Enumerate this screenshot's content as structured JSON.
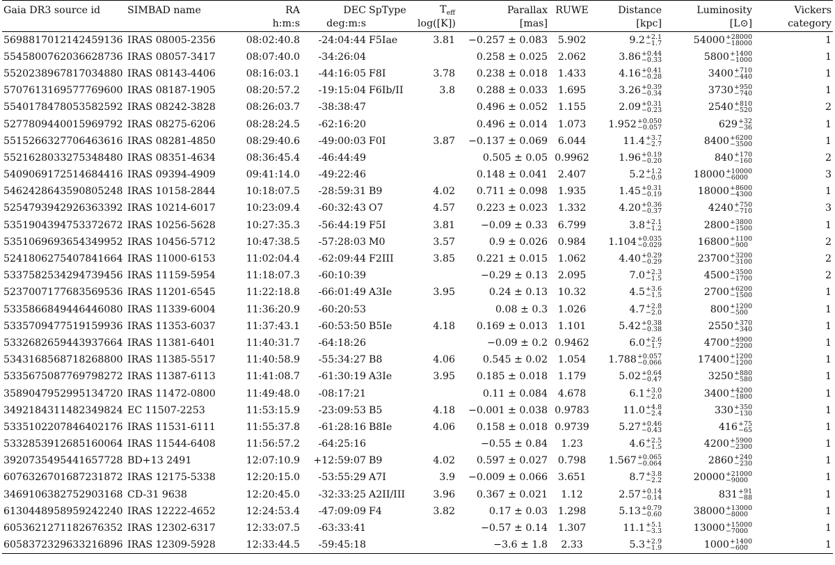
{
  "headers": {
    "gaia": "Gaia DR3 source id",
    "simbad": "SIMBAD name",
    "ra": "RA",
    "ra_unit": "h:m:s",
    "dec": "DEC",
    "dec_unit": "deg:m:s",
    "sptype": "SpType",
    "teff_main": "T",
    "teff_sub": "eff",
    "teff_unit": "log([K])",
    "parallax": "Parallax",
    "parallax_unit": "[mas]",
    "ruwe": "RUWE",
    "distance": "Distance",
    "distance_unit": "[kpc]",
    "luminosity": "Luminosity",
    "luminosity_unit": "[L⊙]",
    "vickers": "Vickers",
    "vickers_unit": "category"
  },
  "rows": [
    {
      "gaia": "5698817012142459136",
      "simbad": "IRAS 08005-2356",
      "ra": "08:02:40.8",
      "dec": "-24:04:44",
      "sp": "F5Iae",
      "teff": "3.81",
      "plx": "−0.257 ± 0.083",
      "ruwe": "5.902",
      "dist": "9.2",
      "dist_up": "+2.1",
      "dist_lo": "−1.7",
      "lum": "54000",
      "lum_up": "+28000",
      "lum_lo": "−18000",
      "vick": "1"
    },
    {
      "gaia": "5545800762036628736",
      "simbad": "IRAS 08057-3417",
      "ra": "08:07:40.0",
      "dec": "-34:26:04",
      "sp": "",
      "teff": "",
      "plx": "0.258 ± 0.025",
      "ruwe": "2.062",
      "dist": "3.86",
      "dist_up": "+0.44",
      "dist_lo": "−0.33",
      "lum": "5800",
      "lum_up": "+1400",
      "lum_lo": "−1000",
      "vick": "1"
    },
    {
      "gaia": "5520238967817034880",
      "simbad": "IRAS 08143-4406",
      "ra": "08:16:03.1",
      "dec": "-44:16:05",
      "sp": "F8I",
      "teff": "3.78",
      "plx": "0.238 ± 0.018",
      "ruwe": "1.433",
      "dist": "4.16",
      "dist_up": "+0.41",
      "dist_lo": "−0.28",
      "lum": "3400",
      "lum_up": "+710",
      "lum_lo": "−440",
      "vick": "1"
    },
    {
      "gaia": "5707613169577769600",
      "simbad": "IRAS 08187-1905",
      "ra": "08:20:57.2",
      "dec": "-19:15:04",
      "sp": "F6Ib/II",
      "teff": "3.8",
      "plx": "0.288 ± 0.033",
      "ruwe": "1.695",
      "dist": "3.26",
      "dist_up": "+0.39",
      "dist_lo": "−0.34",
      "lum": "3730",
      "lum_up": "+950",
      "lum_lo": "−740",
      "vick": "1"
    },
    {
      "gaia": "5540178478053582592",
      "simbad": "IRAS 08242-3828",
      "ra": "08:26:03.7",
      "dec": "-38:38:47",
      "sp": "",
      "teff": "",
      "plx": "0.496 ± 0.052",
      "ruwe": "1.155",
      "dist": "2.09",
      "dist_up": "+0.31",
      "dist_lo": "−0.23",
      "lum": "2540",
      "lum_up": "+810",
      "lum_lo": "−520",
      "vick": "2"
    },
    {
      "gaia": "5277809440015969792",
      "simbad": "IRAS 08275-6206",
      "ra": "08:28:24.5",
      "dec": "-62:16:20",
      "sp": "",
      "teff": "",
      "plx": "0.496 ± 0.014",
      "ruwe": "1.073",
      "dist": "1.952",
      "dist_up": "+0.050",
      "dist_lo": "−0.057",
      "lum": "629",
      "lum_up": "+32",
      "lum_lo": "−36",
      "vick": "1"
    },
    {
      "gaia": "5515266327706463616",
      "simbad": "IRAS 08281-4850",
      "ra": "08:29:40.6",
      "dec": "-49:00:03",
      "sp": "F0I",
      "teff": "3.87",
      "plx": "−0.137 ± 0.069",
      "ruwe": "6.044",
      "dist": "11.4",
      "dist_up": "+3.7",
      "dist_lo": "−2.7",
      "lum": "8400",
      "lum_up": "+6200",
      "lum_lo": "−3500",
      "vick": "1"
    },
    {
      "gaia": "5521628033275348480",
      "simbad": "IRAS 08351-4634",
      "ra": "08:36:45.4",
      "dec": "-46:44:49",
      "sp": "",
      "teff": "",
      "plx": "0.505 ± 0.05",
      "ruwe": "0.9962",
      "dist": "1.96",
      "dist_up": "+0.19",
      "dist_lo": "−0.20",
      "lum": "840",
      "lum_up": "+170",
      "lum_lo": "−160",
      "vick": "2"
    },
    {
      "gaia": "5409069172514684416",
      "simbad": "IRAS 09394-4909",
      "ra": "09:41:14.0",
      "dec": "-49:22:46",
      "sp": "",
      "teff": "",
      "plx": "0.148 ± 0.041",
      "ruwe": "2.407",
      "dist": "5.2",
      "dist_up": "+1.2",
      "dist_lo": "−0.9",
      "lum": "18000",
      "lum_up": "+10000",
      "lum_lo": "−6000",
      "vick": "3"
    },
    {
      "gaia": "5462428643590805248",
      "simbad": "IRAS 10158-2844",
      "ra": "10:18:07.5",
      "dec": "-28:59:31",
      "sp": "B9",
      "teff": "4.02",
      "plx": "0.711 ± 0.098",
      "ruwe": "1.935",
      "dist": "1.45",
      "dist_up": "+0.31",
      "dist_lo": "−0.19",
      "lum": "18000",
      "lum_up": "+8600",
      "lum_lo": "−4300",
      "vick": "1"
    },
    {
      "gaia": "5254793942926363392",
      "simbad": "IRAS 10214-6017",
      "ra": "10:23:09.4",
      "dec": "-60:32:43",
      "sp": "O7",
      "teff": "4.57",
      "plx": "0.223 ± 0.023",
      "ruwe": "1.332",
      "dist": "4.20",
      "dist_up": "+0.36",
      "dist_lo": "−0.37",
      "lum": "4240",
      "lum_up": "+750",
      "lum_lo": "−710",
      "vick": "3"
    },
    {
      "gaia": "5351904394753372672",
      "simbad": "IRAS 10256-5628",
      "ra": "10:27:35.3",
      "dec": "-56:44:19",
      "sp": "F5I",
      "teff": "3.81",
      "plx": "−0.09 ± 0.33",
      "ruwe": "6.799",
      "dist": "3.8",
      "dist_up": "+2.1",
      "dist_lo": "−1.2",
      "lum": "2800",
      "lum_up": "+3800",
      "lum_lo": "−1500",
      "vick": "1"
    },
    {
      "gaia": "5351069693654349952",
      "simbad": "IRAS 10456-5712",
      "ra": "10:47:38.5",
      "dec": "-57:28:03",
      "sp": "M0",
      "teff": "3.57",
      "plx": "0.9 ± 0.026",
      "ruwe": "0.984",
      "dist": "1.104",
      "dist_up": "+0.035",
      "dist_lo": "−0.029",
      "lum": "16800",
      "lum_up": "+1100",
      "lum_lo": "−900",
      "vick": "2"
    },
    {
      "gaia": "5241806275407841664",
      "simbad": "IRAS 11000-6153",
      "ra": "11:02:04.4",
      "dec": "-62:09:44",
      "sp": "F2III",
      "teff": "3.85",
      "plx": "0.221 ± 0.015",
      "ruwe": "1.062",
      "dist": "4.40",
      "dist_up": "+0.29",
      "dist_lo": "−0.29",
      "lum": "23700",
      "lum_up": "+3200",
      "lum_lo": "−3100",
      "vick": "2"
    },
    {
      "gaia": "5337582534294739456",
      "simbad": "IRAS 11159-5954",
      "ra": "11:18:07.3",
      "dec": "-60:10:39",
      "sp": "",
      "teff": "",
      "plx": "−0.29 ± 0.13",
      "ruwe": "2.095",
      "dist": "7.0",
      "dist_up": "+2.3",
      "dist_lo": "−1.5",
      "lum": "4500",
      "lum_up": "+3500",
      "lum_lo": "−1700",
      "vick": "2"
    },
    {
      "gaia": "5237007177683569536",
      "simbad": "IRAS 11201-6545",
      "ra": "11:22:18.8",
      "dec": "-66:01:49",
      "sp": "A3Ie",
      "teff": "3.95",
      "plx": "0.24 ± 0.13",
      "ruwe": "10.32",
      "dist": "4.5",
      "dist_up": "+3.6",
      "dist_lo": "−1.5",
      "lum": "2700",
      "lum_up": "+6200",
      "lum_lo": "−1500",
      "vick": "1"
    },
    {
      "gaia": "5335866849446446080",
      "simbad": "IRAS 11339-6004",
      "ra": "11:36:20.9",
      "dec": "-60:20:53",
      "sp": "",
      "teff": "",
      "plx": "0.08 ± 0.3",
      "ruwe": "1.026",
      "dist": "4.7",
      "dist_up": "+2.8",
      "dist_lo": "−2.0",
      "lum": "800",
      "lum_up": "+1200",
      "lum_lo": "−500",
      "vick": "1"
    },
    {
      "gaia": "5335709477519159936",
      "simbad": "IRAS 11353-6037",
      "ra": "11:37:43.1",
      "dec": "-60:53:50",
      "sp": "B5Ie",
      "teff": "4.18",
      "plx": "0.169 ± 0.013",
      "ruwe": "1.101",
      "dist": "5.42",
      "dist_up": "+0.38",
      "dist_lo": "−0.38",
      "lum": "2550",
      "lum_up": "+370",
      "lum_lo": "−340",
      "vick": "1"
    },
    {
      "gaia": "5332682659443937664",
      "simbad": "IRAS 11381-6401",
      "ra": "11:40:31.7",
      "dec": "-64:18:26",
      "sp": "",
      "teff": "",
      "plx": "−0.09 ± 0.2",
      "ruwe": "0.9462",
      "dist": "6.0",
      "dist_up": "+2.6",
      "dist_lo": "−1.7",
      "lum": "4700",
      "lum_up": "+4900",
      "lum_lo": "−2200",
      "vick": "1"
    },
    {
      "gaia": "5343168568718268800",
      "simbad": "IRAS 11385-5517",
      "ra": "11:40:58.9",
      "dec": "-55:34:27",
      "sp": "B8",
      "teff": "4.06",
      "plx": "0.545 ± 0.02",
      "ruwe": "1.054",
      "dist": "1.788",
      "dist_up": "+0.057",
      "dist_lo": "−0.066",
      "lum": "17400",
      "lum_up": "+1200",
      "lum_lo": "−1200",
      "vick": "1"
    },
    {
      "gaia": "5335675087769798272",
      "simbad": "IRAS 11387-6113",
      "ra": "11:41:08.7",
      "dec": "-61:30:19",
      "sp": "A3Ie",
      "teff": "3.95",
      "plx": "0.185 ± 0.018",
      "ruwe": "1.179",
      "dist": "5.02",
      "dist_up": "+0.64",
      "dist_lo": "−0.47",
      "lum": "3250",
      "lum_up": "+880",
      "lum_lo": "−580",
      "vick": "1"
    },
    {
      "gaia": "3589047952995134720",
      "simbad": "IRAS 11472-0800",
      "ra": "11:49:48.0",
      "dec": "-08:17:21",
      "sp": "",
      "teff": "",
      "plx": "0.11 ± 0.084",
      "ruwe": "4.678",
      "dist": "6.1",
      "dist_up": "+3.0",
      "dist_lo": "−2.0",
      "lum": "3400",
      "lum_up": "+4200",
      "lum_lo": "−1800",
      "vick": "1"
    },
    {
      "gaia": "3492184311482349824",
      "simbad": "EC 11507-2253",
      "ra": "11:53:15.9",
      "dec": "-23:09:53",
      "sp": "B5",
      "teff": "4.18",
      "plx": "−0.001 ± 0.038",
      "ruwe": "0.9783",
      "dist": "11.0",
      "dist_up": "+4.8",
      "dist_lo": "−2.4",
      "lum": "330",
      "lum_up": "+350",
      "lum_lo": "−130",
      "vick": "1"
    },
    {
      "gaia": "5335102207846402176",
      "simbad": "IRAS 11531-6111",
      "ra": "11:55:37.8",
      "dec": "-61:28:16",
      "sp": "B8Ie",
      "teff": "4.06",
      "plx": "0.158 ± 0.018",
      "ruwe": "0.9739",
      "dist": "5.27",
      "dist_up": "+0.46",
      "dist_lo": "−0.43",
      "lum": "416",
      "lum_up": "+75",
      "lum_lo": "−65",
      "vick": "1"
    },
    {
      "gaia": "5332853912685160064",
      "simbad": "IRAS 11544-6408",
      "ra": "11:56:57.2",
      "dec": "-64:25:16",
      "sp": "",
      "teff": "",
      "plx": "−0.55 ± 0.84",
      "ruwe": "1.23",
      "dist": "4.6",
      "dist_up": "+2.5",
      "dist_lo": "−1.5",
      "lum": "4200",
      "lum_up": "+5900",
      "lum_lo": "−2300",
      "vick": "1"
    },
    {
      "gaia": "3920735495441657728",
      "simbad": "BD+13 2491",
      "ra": "12:07:10.9",
      "dec": "+12:59:07",
      "sp": "B9",
      "teff": "4.02",
      "plx": "0.597 ± 0.027",
      "ruwe": "0.798",
      "dist": "1.567",
      "dist_up": "+0.065",
      "dist_lo": "−0.064",
      "lum": "2860",
      "lum_up": "+240",
      "lum_lo": "−230",
      "vick": "1"
    },
    {
      "gaia": "6076326701687231872",
      "simbad": "IRAS 12175-5338",
      "ra": "12:20:15.0",
      "dec": "-53:55:29",
      "sp": "A7I",
      "teff": "3.9",
      "plx": "−0.009 ± 0.066",
      "ruwe": "3.651",
      "dist": "8.7",
      "dist_up": "+3.8",
      "dist_lo": "−2.2",
      "lum": "20000",
      "lum_up": "+21000",
      "lum_lo": "−9000",
      "vick": "1"
    },
    {
      "gaia": "3469106382752903168",
      "simbad": "CD-31 9638",
      "ra": "12:20:45.0",
      "dec": "-32:33:25",
      "sp": "A2II/III",
      "teff": "3.96",
      "plx": "0.367 ± 0.021",
      "ruwe": "1.12",
      "dist": "2.57",
      "dist_up": "+0.14",
      "dist_lo": "−0.14",
      "lum": "831",
      "lum_up": "+91",
      "lum_lo": "−88",
      "vick": "1"
    },
    {
      "gaia": "6130448958959242240",
      "simbad": "IRAS 12222-4652",
      "ra": "12:24:53.4",
      "dec": "-47:09:09",
      "sp": "F4",
      "teff": "3.82",
      "plx": "0.17 ± 0.03",
      "ruwe": "1.298",
      "dist": "5.13",
      "dist_up": "+0.79",
      "dist_lo": "−0.60",
      "lum": "38000",
      "lum_up": "+13000",
      "lum_lo": "−8000",
      "vick": "1"
    },
    {
      "gaia": "6053621271182676352",
      "simbad": "IRAS 12302-6317",
      "ra": "12:33:07.5",
      "dec": "-63:33:41",
      "sp": "",
      "teff": "",
      "plx": "−0.57 ± 0.14",
      "ruwe": "1.307",
      "dist": "11.1",
      "dist_up": "+5.1",
      "dist_lo": "−3.3",
      "lum": "13000",
      "lum_up": "+15000",
      "lum_lo": "−7000",
      "vick": "1"
    },
    {
      "gaia": "6058372329633216896",
      "simbad": "IRAS 12309-5928",
      "ra": "12:33:44.5",
      "dec": "-59:45:18",
      "sp": "",
      "teff": "",
      "plx": "−3.6 ± 1.8",
      "ruwe": "2.33",
      "dist": "5.3",
      "dist_up": "+2.9",
      "dist_lo": "−1.9",
      "lum": "1000",
      "lum_up": "+1400",
      "lum_lo": "−600",
      "vick": "1"
    }
  ]
}
